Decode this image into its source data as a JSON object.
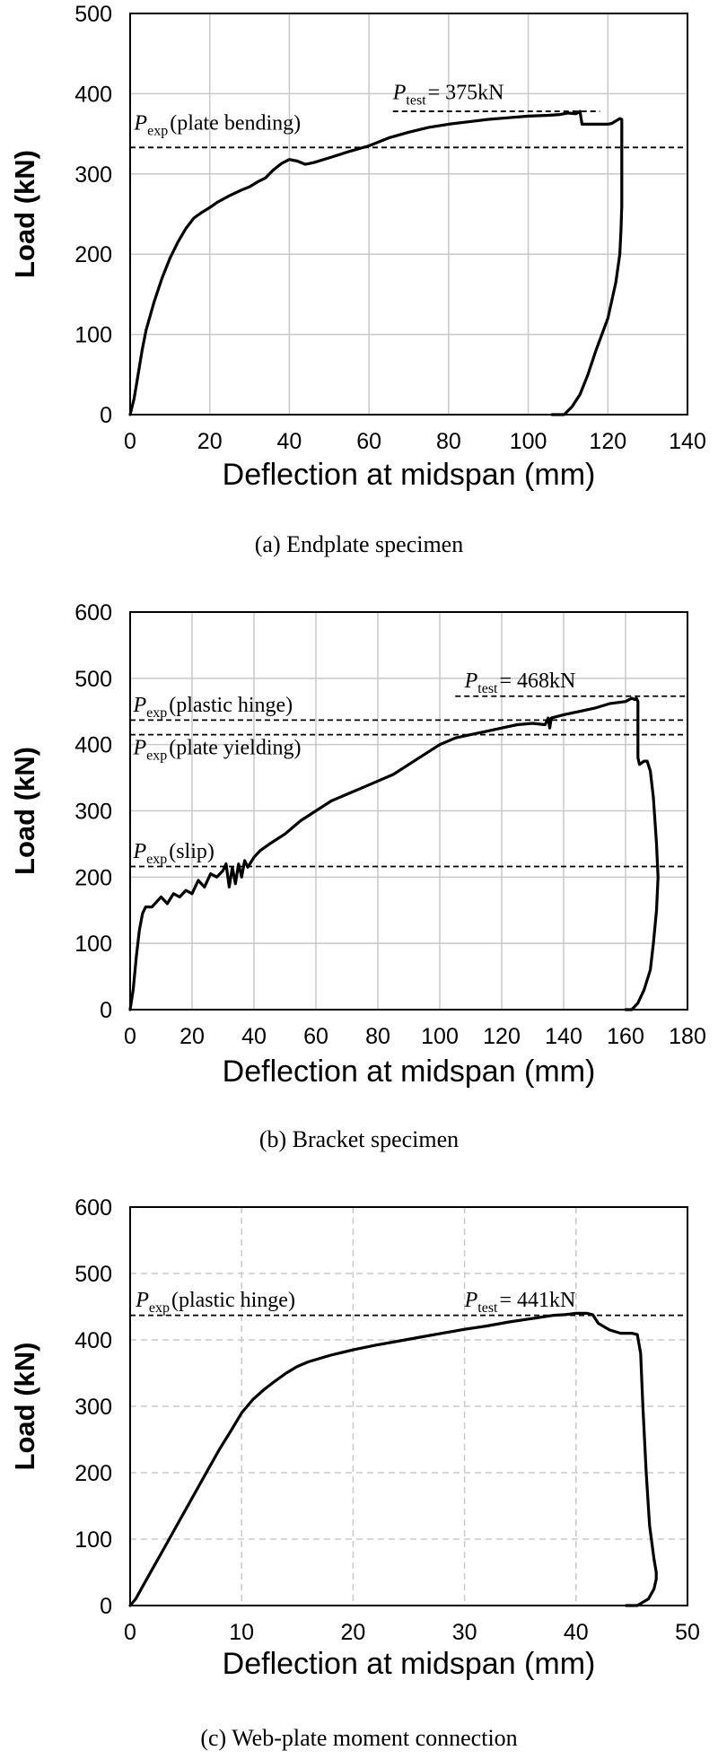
{
  "chart_data": [
    {
      "type": "line",
      "caption": "(a) Endplate specimen",
      "xlabel": "Deflection at midspan   (mm)",
      "ylabel": "Load (kN)",
      "xlim": [
        0,
        140
      ],
      "ylim": [
        0,
        500
      ],
      "xticks": [
        "0",
        "20",
        "40",
        "60",
        "80",
        "100",
        "120",
        "140"
      ],
      "yticks": [
        "0",
        "100",
        "200",
        "300",
        "400",
        "500"
      ],
      "grid": true,
      "series": [
        {
          "x": [
            0,
            1,
            2,
            3,
            4,
            6,
            8,
            10,
            12,
            14,
            16,
            18,
            20,
            22,
            25,
            28,
            30,
            32,
            34,
            36,
            38,
            40,
            42,
            44,
            46,
            50,
            55,
            60,
            65,
            70,
            75,
            80,
            85,
            90,
            95,
            100,
            105,
            108,
            110,
            112,
            113,
            113.5,
            114,
            117,
            120,
            121,
            122,
            123,
            123.5,
            123.5,
            123.5,
            123.3,
            123,
            122,
            120,
            117,
            115,
            113,
            111,
            109,
            107,
            106
          ],
          "y": [
            0,
            20,
            50,
            80,
            105,
            140,
            170,
            195,
            215,
            232,
            245,
            252,
            258,
            265,
            273,
            280,
            284,
            290,
            295,
            305,
            313,
            318,
            316,
            312,
            314,
            320,
            328,
            335,
            345,
            352,
            358,
            362,
            365,
            368,
            370,
            372,
            373,
            374,
            376,
            375,
            378,
            362,
            362,
            362,
            362,
            363,
            366,
            369,
            368,
            340,
            260,
            230,
            200,
            165,
            120,
            80,
            50,
            25,
            10,
            0,
            0,
            0
          ],
          "color": "#000000"
        }
      ],
      "reference_lines": [
        {
          "y": 333,
          "x_range": [
            0,
            140
          ],
          "style": "dashed"
        },
        {
          "y": 378,
          "x_range": [
            66,
            118
          ],
          "style": "dashed"
        }
      ],
      "annotations": [
        {
          "symbol": "P",
          "subscript": "exp",
          "text": "(plate bending)",
          "x": 1,
          "y": 355
        },
        {
          "symbol": "P",
          "subscript": "test",
          "text": "= 375kN",
          "x": 66,
          "y": 393
        }
      ]
    },
    {
      "type": "line",
      "caption": "(b) Bracket specimen",
      "xlabel": "Deflection at midspan   (mm)",
      "ylabel": "Load (kN)",
      "xlim": [
        0,
        180
      ],
      "ylim": [
        0,
        600
      ],
      "xticks": [
        "0",
        "20",
        "40",
        "60",
        "80",
        "100",
        "120",
        "140",
        "160",
        "180"
      ],
      "yticks": [
        "0",
        "100",
        "200",
        "300",
        "400",
        "500",
        "600"
      ],
      "grid": true,
      "series": [
        {
          "x": [
            0,
            1,
            2,
            3,
            4,
            5,
            7,
            9,
            10,
            12,
            14,
            16,
            18,
            20,
            22,
            24,
            26,
            28,
            30,
            31,
            32,
            33,
            34,
            35,
            36,
            37,
            38,
            40,
            42,
            45,
            50,
            55,
            60,
            65,
            70,
            75,
            80,
            85,
            90,
            95,
            100,
            105,
            110,
            115,
            120,
            125,
            130,
            134,
            135,
            135.5,
            136,
            140,
            145,
            150,
            155,
            160,
            162,
            163,
            163.5,
            164,
            164,
            164.5,
            166,
            167,
            168,
            169,
            170,
            170.5,
            170,
            169,
            168,
            166,
            164,
            162,
            161,
            160
          ],
          "y": [
            0,
            30,
            80,
            120,
            145,
            155,
            155,
            165,
            170,
            160,
            175,
            170,
            180,
            175,
            195,
            185,
            205,
            200,
            210,
            220,
            185,
            215,
            190,
            220,
            200,
            225,
            215,
            230,
            240,
            250,
            265,
            285,
            300,
            315,
            325,
            335,
            345,
            355,
            370,
            385,
            400,
            410,
            415,
            420,
            425,
            430,
            432,
            430,
            440,
            425,
            440,
            445,
            450,
            455,
            462,
            465,
            470,
            468,
            470,
            465,
            380,
            370,
            375,
            375,
            360,
            320,
            250,
            200,
            150,
            100,
            60,
            30,
            10,
            0,
            0,
            0
          ],
          "color": "#000000"
        }
      ],
      "reference_lines": [
        {
          "y": 473,
          "x_range": [
            105,
            180
          ],
          "style": "dashed"
        },
        {
          "y": 437,
          "x_range": [
            0,
            180
          ],
          "style": "dashed"
        },
        {
          "y": 415,
          "x_range": [
            0,
            180
          ],
          "style": "dashed"
        },
        {
          "y": 216,
          "x_range": [
            0,
            180
          ],
          "style": "dashed"
        }
      ],
      "annotations": [
        {
          "symbol": "P",
          "subscript": "exp",
          "text": "(plastic hinge)",
          "x": 1,
          "y": 450
        },
        {
          "symbol": "P",
          "subscript": "exp",
          "text": "(plate yielding)",
          "x": 1,
          "y": 385
        },
        {
          "symbol": "P",
          "subscript": "exp",
          "text": "(slip)",
          "x": 1,
          "y": 229
        },
        {
          "symbol": "P",
          "subscript": "test",
          "text": "= 468kN",
          "x": 108,
          "y": 486
        }
      ]
    },
    {
      "type": "line",
      "caption": "(c) Web-plate moment connection",
      "xlabel": "Deflection at midspan   (mm)",
      "ylabel": "Load (kN)",
      "xlim": [
        0,
        50
      ],
      "ylim": [
        0,
        600
      ],
      "xticks": [
        "0",
        "10",
        "20",
        "30",
        "40",
        "50"
      ],
      "yticks": [
        "0",
        "100",
        "200",
        "300",
        "400",
        "500",
        "600"
      ],
      "grid": true,
      "series": [
        {
          "x": [
            0,
            0.5,
            1,
            2,
            3,
            4,
            5,
            6,
            7,
            8,
            9,
            10,
            11,
            12,
            13,
            14,
            15,
            16,
            18,
            20,
            22,
            24,
            26,
            28,
            30,
            32,
            34,
            36,
            38,
            39,
            40,
            41,
            41.5,
            42,
            43,
            44,
            45,
            45.5,
            45.8,
            46,
            46.3,
            46.6,
            47,
            47.2,
            47.2,
            47,
            46.5,
            45.5,
            44.5
          ],
          "y": [
            0,
            10,
            25,
            55,
            85,
            115,
            145,
            175,
            205,
            235,
            262,
            290,
            310,
            325,
            338,
            350,
            360,
            367,
            377,
            385,
            392,
            398,
            404,
            410,
            416,
            421,
            427,
            432,
            437,
            438,
            440,
            440,
            438,
            425,
            415,
            410,
            410,
            408,
            380,
            300,
            200,
            120,
            70,
            50,
            40,
            25,
            10,
            0,
            0
          ],
          "color": "#000000"
        }
      ],
      "reference_lines": [
        {
          "y": 437,
          "x_range": [
            0,
            50
          ],
          "style": "dashed"
        }
      ],
      "annotations": [
        {
          "symbol": "P",
          "subscript": "exp",
          "text": "(plastic hinge)",
          "x": 0.5,
          "y": 450
        },
        {
          "symbol": "P",
          "subscript": "test",
          "text": "= 441kN",
          "x": 30,
          "y": 450
        }
      ]
    }
  ]
}
